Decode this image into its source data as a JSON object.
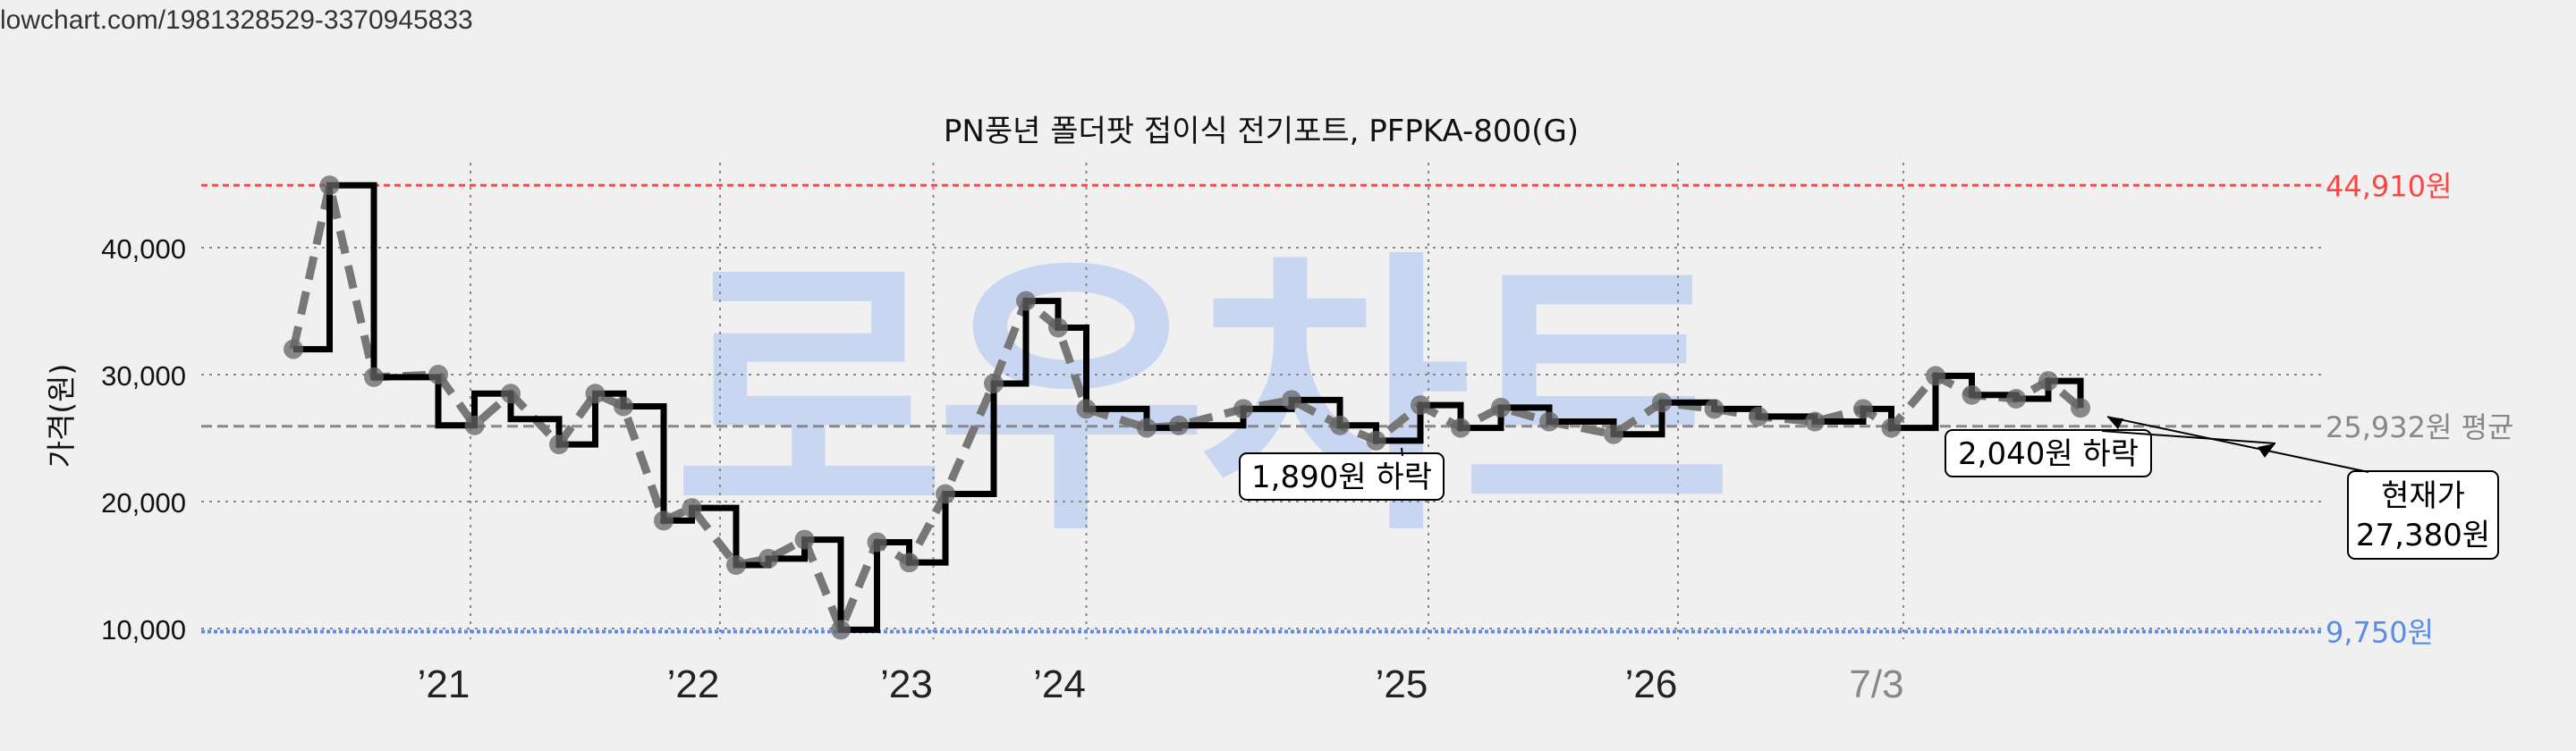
{
  "source_url": "lowchart.com/1981328529-3370945833",
  "watermark": "로우차트",
  "chart_data": {
    "type": "line",
    "title": "PN풍년 폴더팟 접이식 전기포트, PFPKA-800(G)",
    "ylabel": "가격(원)",
    "xlabel": "",
    "ylim": [
      9000,
      46000
    ],
    "xlim": [
      0,
      2520
    ],
    "y_ticks": [
      10000,
      20000,
      30000,
      40000
    ],
    "y_tick_labels": [
      "10,000",
      "20,000",
      "30,000",
      "40,000"
    ],
    "x_ticks": [
      {
        "label": "’21",
        "x": 220
      },
      {
        "label": "’22",
        "x": 530
      },
      {
        "label": "’23",
        "x": 795
      },
      {
        "label": "’24",
        "x": 985
      },
      {
        "label": "’25",
        "x": 1410
      },
      {
        "label": "’26",
        "x": 1720
      },
      {
        "label": "7/3",
        "x": 2000
      }
    ],
    "series": [
      {
        "name": "",
        "style": "step",
        "x": [
          0,
          45,
          100,
          180,
          225,
          270,
          330,
          375,
          410,
          460,
          495,
          550,
          590,
          635,
          680,
          725,
          765,
          810,
          870,
          910,
          950,
          985,
          1060,
          1100,
          1180,
          1240,
          1300,
          1345,
          1400,
          1450,
          1500,
          1560,
          1640,
          1700,
          1765,
          1820,
          1890,
          1950,
          1985,
          2040,
          2085,
          2140,
          2180,
          2220
        ],
        "y": [
          32000,
          44910,
          29800,
          26000,
          28500,
          26500,
          24500,
          28500,
          27500,
          18500,
          19500,
          15000,
          15500,
          17000,
          9900,
          16800,
          15200,
          20600,
          29300,
          35800,
          33700,
          27300,
          25800,
          26000,
          27300,
          28000,
          26000,
          24800,
          27600,
          25800,
          27400,
          26300,
          25300,
          27800,
          27300,
          26700,
          26300,
          27300,
          25800,
          29900,
          28400,
          28100,
          29500,
          27380
        ]
      },
      {
        "name": "",
        "style": "dashed",
        "x": [
          0,
          45,
          100,
          180,
          225,
          270,
          330,
          375,
          410,
          460,
          495,
          550,
          590,
          635,
          680,
          725,
          765,
          810,
          870,
          910,
          950,
          985,
          1060,
          1100,
          1180,
          1240,
          1300,
          1345,
          1400,
          1450,
          1500,
          1560,
          1640,
          1700,
          1765,
          1820,
          1890,
          1950,
          1985,
          2040,
          2085,
          2140,
          2180,
          2220
        ],
        "y": [
          32000,
          44910,
          29800,
          30000,
          26000,
          28500,
          24500,
          28500,
          27500,
          18500,
          19500,
          15000,
          15500,
          17000,
          9900,
          16800,
          15200,
          20600,
          29300,
          35800,
          33700,
          27300,
          25800,
          26000,
          27300,
          28000,
          26000,
          24800,
          27600,
          25800,
          27400,
          26300,
          25300,
          27800,
          27300,
          26700,
          26300,
          27300,
          25800,
          29900,
          28400,
          28100,
          29500,
          27380
        ]
      }
    ],
    "reference_lines": {
      "max": {
        "value": 44910,
        "label": "44,910원",
        "color": "#ff4444"
      },
      "avg": {
        "value": 25932,
        "label": "25,932원 평균",
        "color": "#888888"
      },
      "min": {
        "value": 9750,
        "label": "9,750원",
        "color": "#5a8be8"
      }
    },
    "annotations": [
      {
        "text": "1,890원 하락",
        "x": 1310,
        "y": 24800
      },
      {
        "text": "2,040원 하락",
        "x": 2140,
        "y": 28100
      },
      {
        "text": "현재가\n27,380원",
        "x": 2220,
        "y": 27380
      }
    ],
    "grid": true,
    "legend": "none"
  }
}
